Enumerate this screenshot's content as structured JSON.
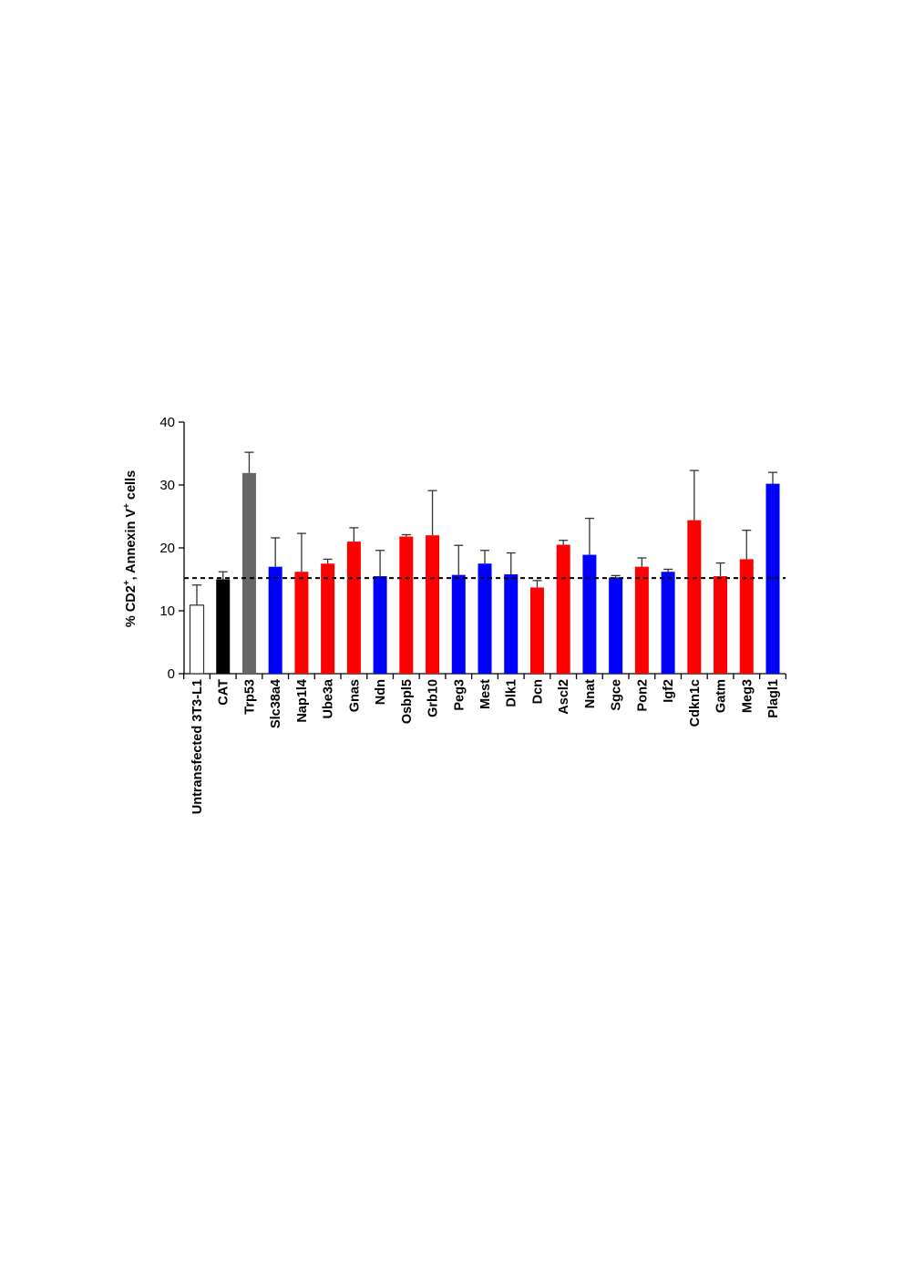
{
  "chart_data": {
    "type": "bar",
    "title": "",
    "xlabel": "",
    "ylabel": "% CD2+, Annexin V+ cells",
    "ylabel_parts": {
      "pre": "% CD2",
      "sup1": "+",
      "mid": ", Annexin V",
      "sup2": "+",
      "post": " cells"
    },
    "ylim": [
      0,
      40
    ],
    "yticks": [
      0,
      10,
      20,
      30,
      40
    ],
    "grid": false,
    "legend": "none",
    "reference_line": {
      "value": 15.2,
      "style": "dashed",
      "color": "#000000"
    },
    "colors": {
      "untransfected": "#ffffff",
      "control": "#000000",
      "positive": "#666666",
      "red": "#ff0000",
      "blue": "#0000ff"
    },
    "categories": [
      "Untransfected 3T3-L1",
      "CAT",
      "Trp53",
      "Slc38a4",
      "Nap1l4",
      "Ube3a",
      "Gnas",
      "Ndn",
      "Osbpl5",
      "Grb10",
      "Peg3",
      "Mest",
      "Dlk1",
      "Dcn",
      "Ascl2",
      "Nnat",
      "Sgce",
      "Pon2",
      "Igf2",
      "Cdkn1c",
      "Gatm",
      "Meg3",
      "Plagl1"
    ],
    "values": [
      10.9,
      15.0,
      31.9,
      17.0,
      16.2,
      17.5,
      21.0,
      15.5,
      21.8,
      22.0,
      15.7,
      17.5,
      15.8,
      13.7,
      20.5,
      18.9,
      15.3,
      17.0,
      16.2,
      24.4,
      15.5,
      18.2,
      30.2
    ],
    "error_upper": [
      14.1,
      16.2,
      35.2,
      21.6,
      22.3,
      18.2,
      23.2,
      19.6,
      22.1,
      29.1,
      20.4,
      19.6,
      19.2,
      14.8,
      21.2,
      24.7,
      15.6,
      18.4,
      16.6,
      32.3,
      17.6,
      22.8,
      32.0
    ],
    "bar_colors": [
      "#ffffff",
      "#000000",
      "#666666",
      "#0000ff",
      "#ff0000",
      "#ff0000",
      "#ff0000",
      "#0000ff",
      "#ff0000",
      "#ff0000",
      "#0000ff",
      "#0000ff",
      "#0000ff",
      "#ff0000",
      "#ff0000",
      "#0000ff",
      "#0000ff",
      "#ff0000",
      "#0000ff",
      "#ff0000",
      "#ff0000",
      "#ff0000",
      "#0000ff"
    ]
  }
}
